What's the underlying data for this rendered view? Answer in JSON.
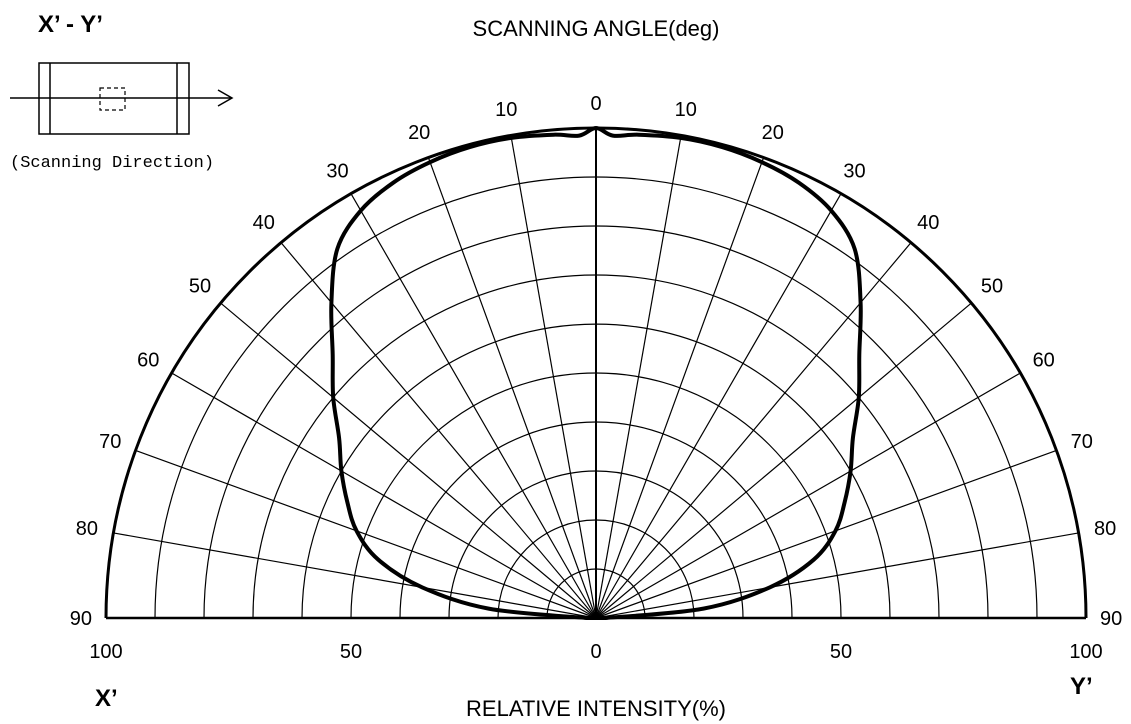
{
  "chart_data": {
    "type": "line",
    "chart_style": "polar-radiation-pattern",
    "title": "SCANNING ANGLE(deg)",
    "xlabel": "RELATIVE INTENSITY(%)",
    "header_label": "X’ - Y’",
    "left_label": "X’",
    "right_label": "Y’",
    "inset_caption": "(Scanning Direction)",
    "angle_range": [
      -90,
      90
    ],
    "angle_step": 10,
    "radial_range": [
      0,
      100
    ],
    "radial_step": 10,
    "angle_tick_labels": [
      "0",
      "10",
      "20",
      "30",
      "40",
      "50",
      "60",
      "70",
      "80",
      "90"
    ],
    "intensity_tick_values": [
      100,
      50,
      0,
      50,
      100
    ],
    "intensity_tick_labels": [
      "100",
      "50",
      "0",
      "50",
      "100"
    ],
    "grid": true,
    "series": [
      {
        "angle": [
          -90,
          -85,
          -80,
          -75,
          -70,
          -65,
          -60,
          -55,
          -50,
          -45,
          -40,
          -35,
          -30,
          -25,
          -20,
          -15,
          -10,
          -5,
          -2,
          0,
          2,
          5,
          10,
          15,
          20,
          25,
          30,
          35,
          40,
          45,
          50,
          55,
          60,
          65,
          70,
          75,
          80,
          85,
          90
        ],
        "intensity": [
          2,
          22,
          36,
          46,
          52,
          56,
          60,
          64,
          70,
          76,
          84,
          92,
          96,
          98,
          99,
          99.5,
          99.5,
          99,
          98.5,
          100,
          98.5,
          99,
          99.5,
          99.5,
          99,
          98,
          96,
          92,
          84,
          76,
          70,
          64,
          60,
          56,
          52,
          46,
          36,
          22,
          2
        ],
        "color": "#000000"
      }
    ]
  }
}
